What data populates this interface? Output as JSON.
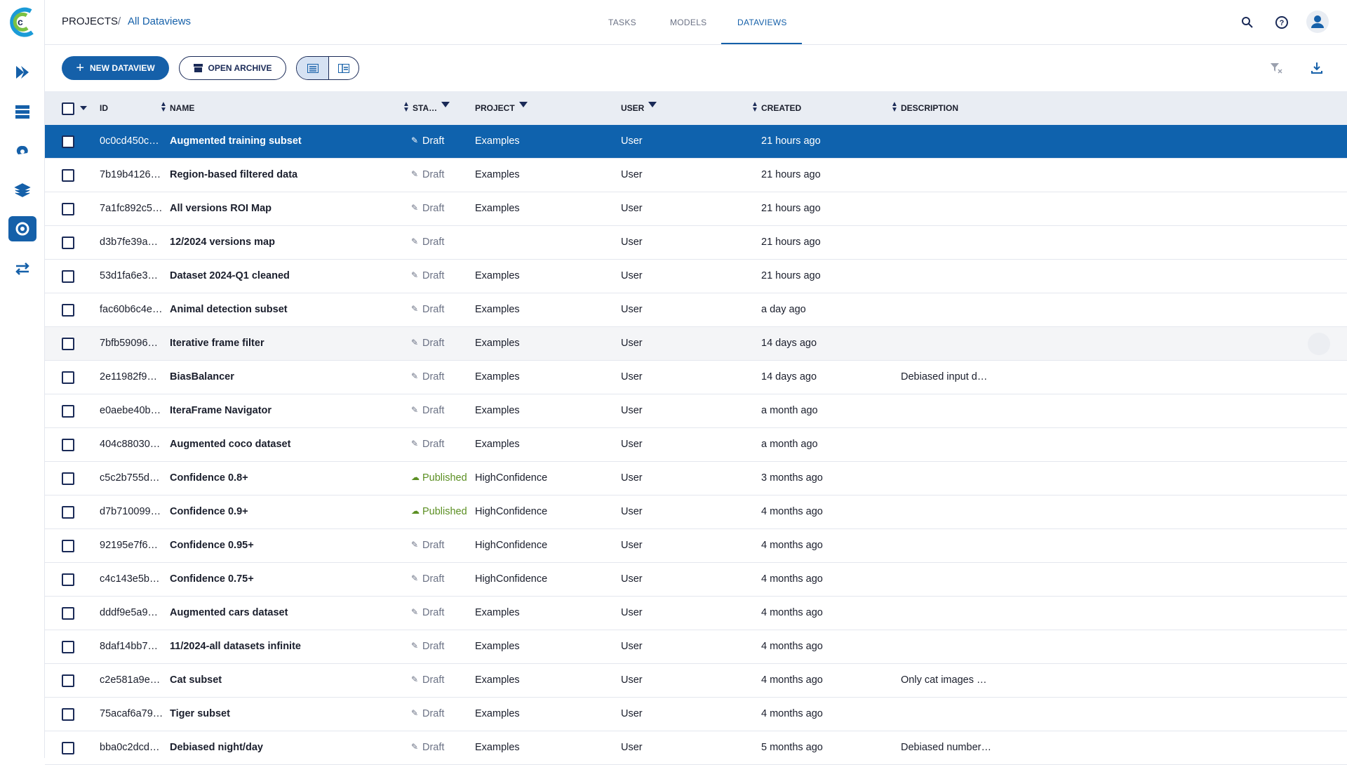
{
  "breadcrumb": {
    "root": "PROJECTS",
    "separator": "/",
    "current": "All Dataviews"
  },
  "tabs": [
    "TASKS",
    "MODELS",
    "DATAVIEWS"
  ],
  "toolbar": {
    "new_button": "NEW DATAVIEW",
    "archive_button": "OPEN ARCHIVE"
  },
  "table": {
    "columns": [
      "ID",
      "NAME",
      "STA…",
      "PROJECT",
      "USER",
      "CREATED",
      "DESCRIPTION"
    ],
    "rows": [
      {
        "id": "0c0cd450c…",
        "name": "Augmented training subset",
        "status": "Draft",
        "project": "Examples",
        "user": "User",
        "created": "21 hours ago"
      },
      {
        "id": "7b19b4126…",
        "name": "Region-based filtered data",
        "status": "Draft",
        "project": "Examples",
        "user": "User",
        "created": "21 hours ago"
      },
      {
        "id": "7a1fc892c5…",
        "name": "All versions ROI Map",
        "status": "Draft",
        "project": "Examples",
        "user": "User",
        "created": "21 hours ago"
      },
      {
        "id": "d3b7fe39a…",
        "name": "12/2024 versions map",
        "status": "Draft",
        "user": "User",
        "created": "21 hours ago"
      },
      {
        "id": "53d1fa6e3…",
        "name": "Dataset 2024-Q1 cleaned",
        "status": "Draft",
        "project": "Examples",
        "user": "User",
        "created": "21 hours ago"
      },
      {
        "id": "fac60b6c4e…",
        "name": "Animal detection subset",
        "status": "Draft",
        "project": "Examples",
        "user": "User",
        "created": "a day ago"
      },
      {
        "id": "7bfb59096…",
        "name": "Iterative frame filter",
        "status": "Draft",
        "project": "Examples",
        "user": "User",
        "created": "14 days ago"
      },
      {
        "id": "2e11982f9…",
        "name": "BiasBalancer",
        "status": "Draft",
        "project": "Examples",
        "user": "User",
        "created": "14 days ago",
        "description": "Debiased input d…"
      },
      {
        "id": "e0aebe40b…",
        "name": "IteraFrame Navigator",
        "status": "Draft",
        "project": "Examples",
        "user": "User",
        "created": "a month ago"
      },
      {
        "id": "404c88030…",
        "name": "Augmented coco dataset",
        "status": "Draft",
        "project": "Examples",
        "user": "User",
        "created": "a month ago"
      },
      {
        "id": "c5c2b755d…",
        "name": "Confidence 0.8+",
        "status": "Published",
        "project": "HighConfidence",
        "user": "User",
        "created": "3 months ago"
      },
      {
        "id": "d7b710099…",
        "name": "Confidence 0.9+",
        "status": "Published",
        "project": "HighConfidence",
        "user": "User",
        "created": "4 months ago"
      },
      {
        "id": "92195e7f6…",
        "name": "Confidence 0.95+",
        "status": "Draft",
        "project": "HighConfidence",
        "user": "User",
        "created": "4 months ago"
      },
      {
        "id": "c4c143e5b…",
        "name": "Confidence 0.75+",
        "status": "Draft",
        "project": "HighConfidence",
        "user": "User",
        "created": "4 months ago"
      },
      {
        "id": "dddf9e5a9…",
        "name": "Augmented cars dataset",
        "status": "Draft",
        "project": "Examples",
        "user": "User",
        "created": "4 months ago"
      },
      {
        "id": "8daf14bb7…",
        "name": "11/2024-all datasets infinite",
        "status": "Draft",
        "project": "Examples",
        "user": "User",
        "created": "4 months ago"
      },
      {
        "id": "c2e581a9e…",
        "name": "Cat subset",
        "status": "Draft",
        "project": "Examples",
        "user": "User",
        "created": "4 months ago",
        "description": "Only cat images …"
      },
      {
        "id": "75acaf6a79…",
        "name": "Tiger subset",
        "status": "Draft",
        "project": "Examples",
        "user": "User",
        "created": "4 months ago"
      },
      {
        "id": "bba0c2dcd…",
        "name": "Debiased night/day",
        "status": "Draft",
        "project": "Examples",
        "user": "User",
        "created": "5 months ago",
        "description": "Debiased number…"
      }
    ]
  }
}
